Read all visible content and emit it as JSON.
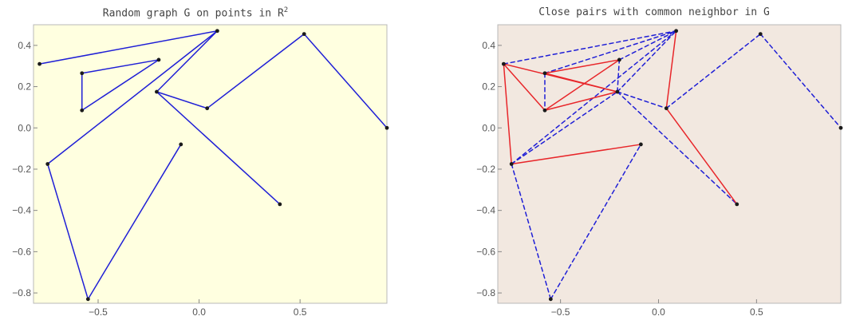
{
  "chart_data": [
    {
      "type": "network-graph",
      "title": "Random graph G on points in R",
      "title_superscript": "2",
      "background_color": "#ffffe0",
      "edge_color": "#1f1fd6",
      "xlim": [
        -0.82,
        0.93
      ],
      "ylim": [
        -0.85,
        0.5
      ],
      "x_ticks": [
        -0.5,
        0.0,
        0.5
      ],
      "x_tick_labels": [
        "−0.5",
        "0.0",
        "0.5"
      ],
      "y_ticks": [
        0.4,
        0.2,
        0.0,
        -0.2,
        -0.4,
        -0.6,
        -0.8
      ],
      "y_tick_labels": [
        "0.4",
        "0.2",
        "0.0",
        "−0.2",
        "−0.4",
        "−0.6",
        "−0.8"
      ],
      "nodes": [
        {
          "id": "A",
          "x": 0.09,
          "y": 0.47
        },
        {
          "id": "B",
          "x": 0.52,
          "y": 0.455
        },
        {
          "id": "C",
          "x": -0.79,
          "y": 0.31
        },
        {
          "id": "D",
          "x": -0.2,
          "y": 0.33
        },
        {
          "id": "E",
          "x": -0.58,
          "y": 0.265
        },
        {
          "id": "F",
          "x": -0.21,
          "y": 0.175
        },
        {
          "id": "G",
          "x": 0.04,
          "y": 0.095
        },
        {
          "id": "H",
          "x": -0.58,
          "y": 0.085
        },
        {
          "id": "I",
          "x": 0.93,
          "y": 0.0
        },
        {
          "id": "J",
          "x": -0.09,
          "y": -0.08
        },
        {
          "id": "K",
          "x": -0.75,
          "y": -0.175
        },
        {
          "id": "L",
          "x": 0.4,
          "y": -0.37
        },
        {
          "id": "M",
          "x": -0.55,
          "y": -0.83
        }
      ],
      "edges": [
        [
          "C",
          "A"
        ],
        [
          "A",
          "F"
        ],
        [
          "A",
          "K"
        ],
        [
          "E",
          "D"
        ],
        [
          "E",
          "H"
        ],
        [
          "H",
          "D"
        ],
        [
          "F",
          "G"
        ],
        [
          "G",
          "B"
        ],
        [
          "B",
          "I"
        ],
        [
          "F",
          "L"
        ],
        [
          "K",
          "M"
        ],
        [
          "M",
          "J"
        ]
      ]
    },
    {
      "type": "network-graph",
      "title": "Close pairs with common neighbor in G",
      "background_color": "#f2e8e0",
      "edge_colors": {
        "solid": "#e8262a",
        "dashed": "#1f1fd6"
      },
      "xlim": [
        -0.82,
        0.93
      ],
      "ylim": [
        -0.85,
        0.5
      ],
      "x_ticks": [
        -0.5,
        0.0,
        0.5
      ],
      "x_tick_labels": [
        "−0.5",
        "0.0",
        "0.5"
      ],
      "y_ticks": [
        0.4,
        0.2,
        0.0,
        -0.2,
        -0.4,
        -0.6,
        -0.8
      ],
      "y_tick_labels": [
        "0.4",
        "0.2",
        "0.0",
        "−0.2",
        "−0.4",
        "−0.6",
        "−0.8"
      ],
      "nodes": [
        {
          "id": "A",
          "x": 0.09,
          "y": 0.47
        },
        {
          "id": "B",
          "x": 0.52,
          "y": 0.455
        },
        {
          "id": "C",
          "x": -0.79,
          "y": 0.31
        },
        {
          "id": "D",
          "x": -0.2,
          "y": 0.33
        },
        {
          "id": "E",
          "x": -0.58,
          "y": 0.265
        },
        {
          "id": "F",
          "x": -0.21,
          "y": 0.175
        },
        {
          "id": "G",
          "x": 0.04,
          "y": 0.095
        },
        {
          "id": "H",
          "x": -0.58,
          "y": 0.085
        },
        {
          "id": "I",
          "x": 0.93,
          "y": 0.0
        },
        {
          "id": "J",
          "x": -0.09,
          "y": -0.08
        },
        {
          "id": "K",
          "x": -0.75,
          "y": -0.175
        },
        {
          "id": "L",
          "x": 0.4,
          "y": -0.37
        },
        {
          "id": "M",
          "x": -0.55,
          "y": -0.83
        }
      ],
      "solid_edges": [
        [
          "C",
          "H"
        ],
        [
          "C",
          "F"
        ],
        [
          "C",
          "K"
        ],
        [
          "E",
          "D"
        ],
        [
          "H",
          "D"
        ],
        [
          "H",
          "F"
        ],
        [
          "E",
          "F"
        ],
        [
          "K",
          "J"
        ],
        [
          "G",
          "A"
        ],
        [
          "G",
          "L"
        ]
      ],
      "dashed_edges": [
        [
          "C",
          "A"
        ],
        [
          "E",
          "A"
        ],
        [
          "D",
          "A"
        ],
        [
          "F",
          "A"
        ],
        [
          "K",
          "A"
        ],
        [
          "E",
          "H"
        ],
        [
          "F",
          "D"
        ],
        [
          "K",
          "F"
        ],
        [
          "F",
          "L"
        ],
        [
          "G",
          "B"
        ],
        [
          "B",
          "I"
        ],
        [
          "K",
          "M"
        ],
        [
          "M",
          "J"
        ],
        [
          "F",
          "G"
        ]
      ]
    }
  ]
}
